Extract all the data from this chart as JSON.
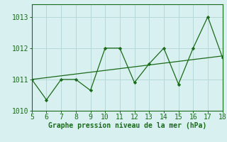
{
  "x": [
    5,
    6,
    7,
    8,
    9,
    10,
    11,
    12,
    13,
    14,
    15,
    16,
    17,
    18
  ],
  "y": [
    1011.0,
    1010.35,
    1011.0,
    1011.0,
    1010.65,
    1012.0,
    1012.0,
    1010.9,
    1011.5,
    1012.0,
    1010.85,
    1012.0,
    1013.0,
    1011.7
  ],
  "trend_x": [
    5,
    18
  ],
  "trend_y": [
    1011.0,
    1011.75
  ],
  "line_color": "#1a6b1a",
  "bg_color": "#d8f0f0",
  "grid_color": "#b8d8d8",
  "xlabel": "Graphe pression niveau de la mer (hPa)",
  "xlim": [
    5,
    18
  ],
  "ylim": [
    1010.0,
    1013.4
  ],
  "yticks": [
    1010,
    1011,
    1012,
    1013
  ],
  "xticks": [
    5,
    6,
    7,
    8,
    9,
    10,
    11,
    12,
    13,
    14,
    15,
    16,
    17,
    18
  ],
  "xlabel_fontsize": 7,
  "tick_fontsize": 7
}
